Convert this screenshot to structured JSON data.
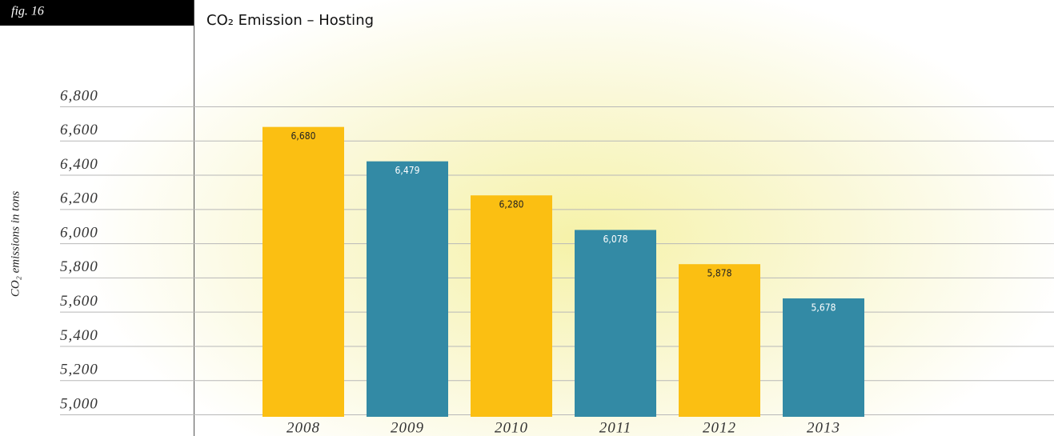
{
  "chart_data": {
    "type": "bar",
    "figure_label": "fig. 16",
    "title": "CO₂ Emission – Hosting",
    "y_label": "CO₂ emissions in tons",
    "categories": [
      "2008",
      "2009",
      "2010",
      "2011",
      "2012",
      "2013"
    ],
    "values": [
      6680,
      6479,
      6280,
      6078,
      5878,
      5678
    ],
    "value_labels": [
      "6,680",
      "6,479",
      "6,280",
      "6,078",
      "5,878",
      "5,678"
    ],
    "colors": [
      "#fbbf12",
      "#338aa5",
      "#fbbf12",
      "#338aa5",
      "#fbbf12",
      "#338aa5"
    ],
    "ylim": [
      5000,
      6800
    ],
    "yticks": [
      {
        "value": 5000,
        "label": "5,000"
      },
      {
        "value": 5200,
        "label": "5,200"
      },
      {
        "value": 5400,
        "label": "5,400"
      },
      {
        "value": 5600,
        "label": "5,600"
      },
      {
        "value": 5800,
        "label": "5,800"
      },
      {
        "value": 6000,
        "label": "6,000"
      },
      {
        "value": 6200,
        "label": "6,200"
      },
      {
        "value": 6400,
        "label": "6,400"
      },
      {
        "value": 6600,
        "label": "6,600"
      },
      {
        "value": 6800,
        "label": "6,800"
      }
    ],
    "grid": true
  }
}
